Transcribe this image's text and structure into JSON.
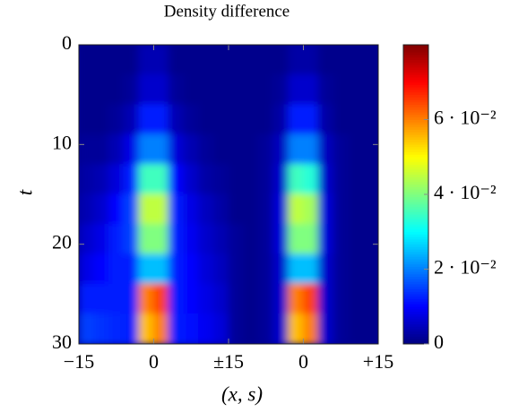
{
  "chart_data": {
    "type": "heatmap",
    "title": "Density difference",
    "xlabel": "(x, s)",
    "ylabel": "t",
    "colormap": "jet",
    "xlim": [
      -15,
      45
    ],
    "ylim": [
      30,
      0
    ],
    "clim": [
      0,
      0.08
    ],
    "xticks": [
      {
        "value": -15,
        "label": "−15"
      },
      0,
      {
        "value": 15,
        "label": "±15"
      },
      {
        "value": 30,
        "label": "0"
      },
      {
        "value": 45,
        "label": "+15"
      }
    ],
    "yticks": [
      0,
      10,
      20,
      30
    ],
    "cticks": [
      0,
      {
        "value": 0.02,
        "label": "2 · 10⁻²"
      },
      {
        "value": 0.04,
        "label": "4 · 10⁻²"
      },
      {
        "value": 0.06,
        "label": "6 · 10⁻²"
      }
    ],
    "x": [
      -13.5,
      -10.5,
      -7.5,
      -4.5,
      -1.5,
      1.5,
      4.5,
      7.5,
      10.5,
      13.5,
      16.5,
      19.5,
      22.5,
      25.5,
      28.5,
      31.5,
      34.5,
      37.5,
      40.5,
      43.5
    ],
    "y": [
      1.5,
      4.5,
      7.5,
      10.5,
      13.5,
      16.5,
      19.5,
      22.5,
      25.5,
      28.5
    ],
    "z": [
      [
        0.001,
        0.001,
        0.001,
        0.001,
        0.004,
        0.004,
        0.001,
        0.001,
        0.001,
        0.001,
        0.001,
        0.001,
        0.001,
        0.001,
        0.003,
        0.003,
        0.001,
        0.001,
        0.001,
        0.001
      ],
      [
        0.001,
        0.001,
        0.001,
        0.002,
        0.006,
        0.006,
        0.002,
        0.001,
        0.001,
        0.001,
        0.001,
        0.001,
        0.001,
        0.002,
        0.006,
        0.006,
        0.002,
        0.001,
        0.001,
        0.001
      ],
      [
        0.001,
        0.001,
        0.002,
        0.004,
        0.012,
        0.012,
        0.004,
        0.002,
        0.001,
        0.001,
        0.001,
        0.001,
        0.001,
        0.003,
        0.012,
        0.012,
        0.003,
        0.001,
        0.001,
        0.001
      ],
      [
        0.002,
        0.002,
        0.004,
        0.008,
        0.02,
        0.02,
        0.007,
        0.004,
        0.002,
        0.001,
        0.001,
        0.001,
        0.002,
        0.005,
        0.02,
        0.02,
        0.005,
        0.002,
        0.001,
        0.001
      ],
      [
        0.003,
        0.004,
        0.007,
        0.012,
        0.035,
        0.035,
        0.01,
        0.006,
        0.003,
        0.002,
        0.001,
        0.001,
        0.002,
        0.006,
        0.035,
        0.033,
        0.006,
        0.002,
        0.001,
        0.001
      ],
      [
        0.004,
        0.006,
        0.01,
        0.015,
        0.045,
        0.045,
        0.012,
        0.008,
        0.005,
        0.003,
        0.001,
        0.001,
        0.002,
        0.007,
        0.045,
        0.043,
        0.007,
        0.002,
        0.001,
        0.001
      ],
      [
        0.006,
        0.008,
        0.012,
        0.015,
        0.04,
        0.04,
        0.012,
        0.009,
        0.006,
        0.004,
        0.002,
        0.001,
        0.002,
        0.007,
        0.04,
        0.04,
        0.007,
        0.002,
        0.001,
        0.001
      ],
      [
        0.008,
        0.01,
        0.012,
        0.012,
        0.025,
        0.025,
        0.012,
        0.01,
        0.007,
        0.005,
        0.002,
        0.001,
        0.002,
        0.006,
        0.025,
        0.025,
        0.006,
        0.002,
        0.001,
        0.001
      ],
      [
        0.012,
        0.012,
        0.012,
        0.012,
        0.06,
        0.065,
        0.012,
        0.01,
        0.008,
        0.006,
        0.002,
        0.001,
        0.002,
        0.006,
        0.06,
        0.065,
        0.006,
        0.002,
        0.001,
        0.001
      ],
      [
        0.015,
        0.014,
        0.013,
        0.012,
        0.055,
        0.06,
        0.012,
        0.011,
        0.009,
        0.007,
        0.002,
        0.001,
        0.002,
        0.006,
        0.055,
        0.06,
        0.006,
        0.002,
        0.001,
        0.001
      ]
    ]
  }
}
